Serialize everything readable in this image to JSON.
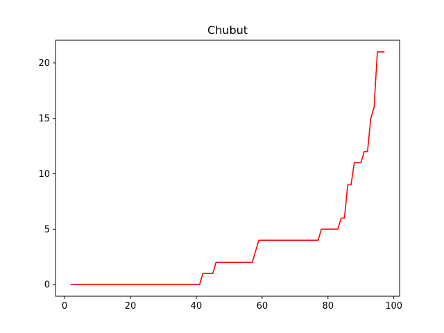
{
  "chart_data": {
    "type": "line",
    "title": "Chubut",
    "xlabel": "",
    "ylabel": "",
    "xlim": [
      -2.75,
      101.75
    ],
    "ylim": [
      -1.05,
      22.05
    ],
    "xticks": [
      0,
      20,
      40,
      60,
      80,
      100
    ],
    "yticks": [
      0,
      5,
      10,
      15,
      20
    ],
    "grid": false,
    "line_color": "#ff0000",
    "series": [
      {
        "x": [
          2,
          41,
          42,
          45,
          46,
          57,
          59,
          77,
          78,
          83,
          84,
          85,
          86,
          87,
          88,
          90,
          91,
          92,
          93,
          94,
          95,
          96,
          97
        ],
        "y": [
          0,
          0,
          1,
          1,
          2,
          2,
          4,
          4,
          5,
          5,
          6,
          6,
          9,
          9,
          11,
          11,
          12,
          12,
          15,
          16,
          21,
          21,
          21
        ]
      }
    ]
  }
}
